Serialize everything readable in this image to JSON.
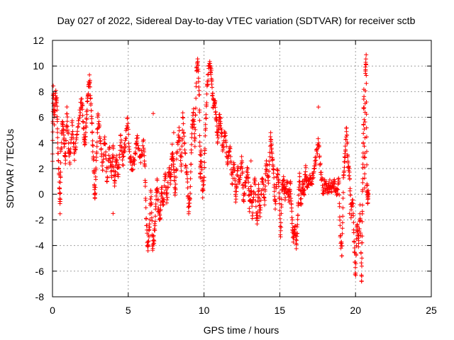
{
  "chart_data": {
    "type": "scatter",
    "title": "Day 027 of 2022, Sidereal Day-to-day VTEC variation (SDTVAR) for receiver sctb",
    "xlabel": "GPS time / hours",
    "ylabel": "SDTVAR / TECUs",
    "xlim": [
      0,
      25
    ],
    "ylim": [
      -8,
      12
    ],
    "xticks": [
      0,
      5,
      10,
      15,
      20,
      25
    ],
    "yticks": [
      -8,
      -6,
      -4,
      -2,
      0,
      2,
      4,
      6,
      8,
      10,
      12
    ],
    "grid": true,
    "marker": "+",
    "color": "#ff0000",
    "series": [
      {
        "name": "SDTVAR",
        "anchors": [
          [
            0.0,
            3.0
          ],
          [
            0.05,
            8.2
          ],
          [
            0.12,
            5.5
          ],
          [
            0.2,
            8.0
          ],
          [
            0.3,
            7.0
          ],
          [
            0.35,
            3.5
          ],
          [
            0.45,
            1.0
          ],
          [
            0.5,
            -1.2
          ],
          [
            0.55,
            3.0
          ],
          [
            0.65,
            5.5
          ],
          [
            0.75,
            4.5
          ],
          [
            0.85,
            2.5
          ],
          [
            0.95,
            6.5
          ],
          [
            1.05,
            4.0
          ],
          [
            1.15,
            2.5
          ],
          [
            1.3,
            5.5
          ],
          [
            1.45,
            3.0
          ],
          [
            1.6,
            4.5
          ],
          [
            1.8,
            6.5
          ],
          [
            1.95,
            7.5
          ],
          [
            2.05,
            5.0
          ],
          [
            2.15,
            4.0
          ],
          [
            2.25,
            6.0
          ],
          [
            2.35,
            8.0
          ],
          [
            2.45,
            9.0
          ],
          [
            2.55,
            6.5
          ],
          [
            2.65,
            4.0
          ],
          [
            2.75,
            1.5
          ],
          [
            2.8,
            -0.5
          ],
          [
            2.9,
            3.0
          ],
          [
            3.0,
            6.0
          ],
          [
            3.15,
            4.5
          ],
          [
            3.3,
            2.0
          ],
          [
            3.45,
            4.5
          ],
          [
            3.6,
            1.0
          ],
          [
            3.75,
            3.5
          ],
          [
            3.9,
            1.5
          ],
          [
            4.0,
            3.5
          ],
          [
            4.1,
            0.5
          ],
          [
            4.2,
            3.0
          ],
          [
            4.35,
            1.5
          ],
          [
            4.5,
            4.5
          ],
          [
            4.65,
            2.5
          ],
          [
            4.8,
            4.0
          ],
          [
            4.95,
            5.8
          ],
          [
            5.1,
            3.0
          ],
          [
            5.25,
            2.0
          ],
          [
            5.45,
            3.0
          ],
          [
            5.6,
            4.5
          ],
          [
            5.8,
            2.5
          ],
          [
            6.0,
            4.0
          ],
          [
            6.1,
            2.0
          ],
          [
            6.2,
            -2.5
          ],
          [
            6.3,
            -4.2
          ],
          [
            6.4,
            -2.5
          ],
          [
            6.5,
            0.5
          ],
          [
            6.6,
            -4.0
          ],
          [
            6.7,
            -3.5
          ],
          [
            6.8,
            -1.5
          ],
          [
            6.9,
            1.0
          ],
          [
            7.0,
            -1.5
          ],
          [
            7.1,
            -2.0
          ],
          [
            7.2,
            0.5
          ],
          [
            7.3,
            -1.0
          ],
          [
            7.45,
            1.5
          ],
          [
            7.55,
            -0.5
          ],
          [
            7.7,
            2.0
          ],
          [
            7.8,
            1.0
          ],
          [
            7.9,
            3.5
          ],
          [
            8.0,
            2.0
          ],
          [
            8.1,
            0.0
          ],
          [
            8.2,
            3.0
          ],
          [
            8.35,
            5.0
          ],
          [
            8.5,
            2.0
          ],
          [
            8.6,
            6.0
          ],
          [
            8.75,
            3.0
          ],
          [
            8.9,
            1.0
          ],
          [
            9.0,
            -1.5
          ],
          [
            9.1,
            0.5
          ],
          [
            9.2,
            5.0
          ],
          [
            9.3,
            6.5
          ],
          [
            9.4,
            4.0
          ],
          [
            9.5,
            9.5
          ],
          [
            9.6,
            10.3
          ],
          [
            9.7,
            7.0
          ],
          [
            9.75,
            1.0
          ],
          [
            9.8,
            3.5
          ],
          [
            9.9,
            0.0
          ],
          [
            10.0,
            1.0
          ],
          [
            10.1,
            5.0
          ],
          [
            10.2,
            8.0
          ],
          [
            10.3,
            10.0
          ],
          [
            10.4,
            10.4
          ],
          [
            10.5,
            9.0
          ],
          [
            10.6,
            7.0
          ],
          [
            10.7,
            7.5
          ],
          [
            10.8,
            6.0
          ],
          [
            10.9,
            4.0
          ],
          [
            11.0,
            6.0
          ],
          [
            11.1,
            5.5
          ],
          [
            11.25,
            3.5
          ],
          [
            11.4,
            5.0
          ],
          [
            11.55,
            2.0
          ],
          [
            11.7,
            4.0
          ],
          [
            11.85,
            1.0
          ],
          [
            12.0,
            2.5
          ],
          [
            12.1,
            -0.5
          ],
          [
            12.2,
            2.0
          ],
          [
            12.35,
            1.0
          ],
          [
            12.5,
            3.0
          ],
          [
            12.6,
            -0.5
          ],
          [
            12.75,
            1.0
          ],
          [
            12.9,
            2.0
          ],
          [
            13.0,
            -1.0
          ],
          [
            13.1,
            0.5
          ],
          [
            13.2,
            -1.5
          ],
          [
            13.35,
            1.5
          ],
          [
            13.5,
            -2.5
          ],
          [
            13.6,
            0.5
          ],
          [
            13.7,
            -1.5
          ],
          [
            13.85,
            1.5
          ],
          [
            14.0,
            -0.5
          ],
          [
            14.1,
            2.5
          ],
          [
            14.25,
            1.0
          ],
          [
            14.4,
            4.5
          ],
          [
            14.5,
            3.0
          ],
          [
            14.6,
            1.5
          ],
          [
            14.7,
            -1.0
          ],
          [
            14.85,
            2.0
          ],
          [
            14.95,
            0.5
          ],
          [
            15.05,
            -3.5
          ],
          [
            15.15,
            0.5
          ],
          [
            15.25,
            1.0
          ],
          [
            15.35,
            0.0
          ],
          [
            15.5,
            0.8
          ],
          [
            15.6,
            -0.5
          ],
          [
            15.7,
            1.0
          ],
          [
            15.8,
            -2.0
          ],
          [
            15.9,
            -3.5
          ],
          [
            16.0,
            -2.5
          ],
          [
            16.1,
            -4.0
          ],
          [
            16.2,
            -1.5
          ],
          [
            16.3,
            1.5
          ],
          [
            16.4,
            -1.0
          ],
          [
            16.5,
            1.0
          ],
          [
            16.6,
            0.0
          ],
          [
            16.7,
            2.0
          ],
          [
            16.8,
            0.8
          ],
          [
            16.95,
            1.2
          ],
          [
            17.1,
            1.0
          ],
          [
            17.25,
            1.8
          ],
          [
            17.4,
            3.0
          ],
          [
            17.55,
            4.0
          ],
          [
            17.7,
            2.0
          ],
          [
            17.85,
            0.3
          ],
          [
            18.0,
            0.8
          ],
          [
            18.15,
            0.2
          ],
          [
            18.3,
            0.7
          ],
          [
            18.45,
            0.5
          ],
          [
            18.6,
            0.8
          ],
          [
            18.75,
            0.0
          ],
          [
            18.9,
            1.0
          ],
          [
            19.0,
            -3.5
          ],
          [
            19.1,
            -4.5
          ],
          [
            19.2,
            1.0
          ],
          [
            19.3,
            3.0
          ],
          [
            19.4,
            5.0
          ],
          [
            19.5,
            2.5
          ],
          [
            19.6,
            1.5
          ],
          [
            19.7,
            -1.5
          ],
          [
            19.8,
            0.0
          ],
          [
            19.9,
            -3.5
          ],
          [
            20.0,
            -6.5
          ],
          [
            20.1,
            -2.0
          ],
          [
            20.2,
            -4.0
          ],
          [
            20.3,
            -1.0
          ],
          [
            20.4,
            -6.8
          ],
          [
            20.45,
            -1.0
          ],
          [
            20.5,
            3.0
          ],
          [
            20.55,
            8.0
          ],
          [
            20.6,
            0.5
          ],
          [
            20.65,
            9.5
          ],
          [
            20.7,
            10.5
          ],
          [
            20.75,
            1.0
          ],
          [
            20.8,
            -0.5
          ],
          [
            20.85,
            0.0
          ]
        ],
        "outliers": [
          [
            4.0,
            -1.5
          ],
          [
            6.65,
            6.3
          ],
          [
            8.0,
            4.8
          ],
          [
            13.1,
            2.6
          ],
          [
            14.4,
            4.8
          ],
          [
            17.55,
            6.8
          ],
          [
            19.6,
            -1.5
          ],
          [
            20.4,
            -6.8
          ]
        ]
      }
    ]
  }
}
